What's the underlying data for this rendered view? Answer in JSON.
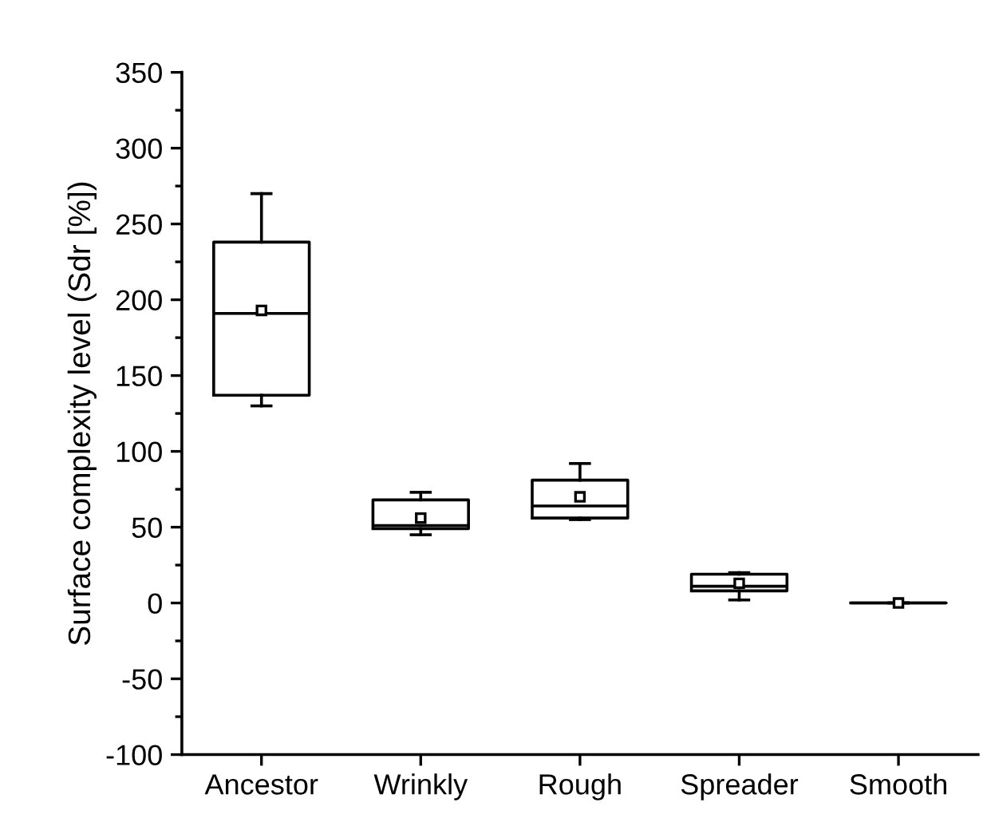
{
  "chart_data": {
    "type": "box",
    "ylabel": "Surface complexity level (Sdr [%])",
    "categories": [
      "Ancestor",
      "Wrinkly",
      "Rough",
      "Spreader",
      "Smooth"
    ],
    "boxes": [
      {
        "low": 130,
        "q1": 137,
        "median": 191,
        "q3": 238,
        "high": 270,
        "mean": 193
      },
      {
        "low": 45,
        "q1": 49,
        "median": 51,
        "q3": 68,
        "high": 73,
        "mean": 56
      },
      {
        "low": 55,
        "q1": 56,
        "median": 64,
        "q3": 81,
        "high": 92,
        "mean": 70
      },
      {
        "low": 2,
        "q1": 8,
        "median": 11,
        "q3": 19,
        "high": 20,
        "mean": 13
      },
      {
        "low": 0,
        "q1": 0,
        "median": 0,
        "q3": 0,
        "high": 0,
        "mean": 0
      }
    ],
    "color": "#000000",
    "marker": "square",
    "ylim": [
      -100,
      350
    ],
    "yticks": [
      -100,
      -50,
      0,
      50,
      100,
      150,
      200,
      250,
      300,
      350
    ],
    "grid": false
  }
}
